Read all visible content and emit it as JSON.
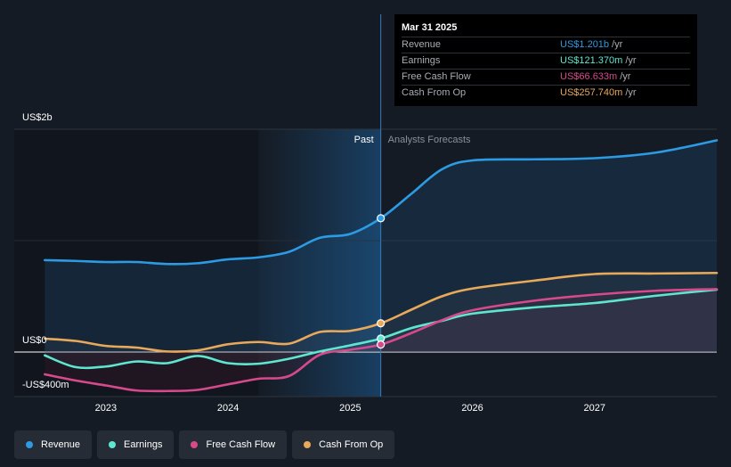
{
  "chart_data": {
    "type": "line",
    "y_axis_labels": {
      "top": "US$2b",
      "zero": "US$0",
      "bottom": "-US$400m"
    },
    "ylim": [
      -400,
      2000
    ],
    "xlim": [
      2022.25,
      2028.0
    ],
    "x_ticks": [
      "2023",
      "2024",
      "2025",
      "2026",
      "2027"
    ],
    "x_tick_values": [
      2023,
      2024,
      2025,
      2026,
      2027
    ],
    "past_label": "Past",
    "forecast_label": "Analysts Forecasts",
    "divider_x": 2025.25,
    "past_band_start": 2024.25,
    "series": [
      {
        "name": "Revenue",
        "color": "#2d9be3",
        "points": [
          [
            2022.5,
            825
          ],
          [
            2022.75,
            818
          ],
          [
            2023.0,
            808
          ],
          [
            2023.25,
            808
          ],
          [
            2023.5,
            790
          ],
          [
            2023.75,
            797
          ],
          [
            2024.0,
            832
          ],
          [
            2024.25,
            850
          ],
          [
            2024.5,
            900
          ],
          [
            2024.75,
            1025
          ],
          [
            2025.0,
            1060
          ],
          [
            2025.25,
            1201
          ],
          [
            2025.5,
            1420
          ],
          [
            2025.75,
            1640
          ],
          [
            2026.0,
            1720
          ],
          [
            2026.5,
            1730
          ],
          [
            2027.0,
            1740
          ],
          [
            2027.5,
            1790
          ],
          [
            2028.0,
            1900
          ]
        ]
      },
      {
        "name": "Earnings",
        "color": "#5ee6d0",
        "points": [
          [
            2022.5,
            -30
          ],
          [
            2022.75,
            -135
          ],
          [
            2023.0,
            -130
          ],
          [
            2023.25,
            -85
          ],
          [
            2023.5,
            -100
          ],
          [
            2023.75,
            -35
          ],
          [
            2024.0,
            -100
          ],
          [
            2024.25,
            -105
          ],
          [
            2024.5,
            -60
          ],
          [
            2024.75,
            5
          ],
          [
            2025.0,
            60
          ],
          [
            2025.25,
            121
          ],
          [
            2025.5,
            215
          ],
          [
            2025.75,
            280
          ],
          [
            2026.0,
            345
          ],
          [
            2026.5,
            400
          ],
          [
            2027.0,
            440
          ],
          [
            2027.5,
            505
          ],
          [
            2028.0,
            560
          ]
        ]
      },
      {
        "name": "Free Cash Flow",
        "color": "#d64a8c",
        "points": [
          [
            2022.5,
            -200
          ],
          [
            2022.75,
            -255
          ],
          [
            2023.0,
            -300
          ],
          [
            2023.25,
            -345
          ],
          [
            2023.5,
            -350
          ],
          [
            2023.75,
            -340
          ],
          [
            2024.0,
            -290
          ],
          [
            2024.25,
            -240
          ],
          [
            2024.5,
            -215
          ],
          [
            2024.75,
            -25
          ],
          [
            2025.0,
            20
          ],
          [
            2025.25,
            67
          ],
          [
            2025.5,
            170
          ],
          [
            2025.75,
            285
          ],
          [
            2026.0,
            375
          ],
          [
            2026.5,
            460
          ],
          [
            2027.0,
            515
          ],
          [
            2027.5,
            550
          ],
          [
            2028.0,
            565
          ]
        ]
      },
      {
        "name": "Cash From Op",
        "color": "#e8a95b",
        "points": [
          [
            2022.5,
            120
          ],
          [
            2022.75,
            100
          ],
          [
            2023.0,
            55
          ],
          [
            2023.25,
            40
          ],
          [
            2023.5,
            5
          ],
          [
            2023.75,
            15
          ],
          [
            2024.0,
            70
          ],
          [
            2024.25,
            90
          ],
          [
            2024.5,
            75
          ],
          [
            2024.75,
            180
          ],
          [
            2025.0,
            190
          ],
          [
            2025.25,
            258
          ],
          [
            2025.5,
            380
          ],
          [
            2025.75,
            500
          ],
          [
            2026.0,
            570
          ],
          [
            2026.5,
            640
          ],
          [
            2027.0,
            700
          ],
          [
            2027.5,
            705
          ],
          [
            2028.0,
            710
          ]
        ]
      }
    ]
  },
  "tooltip": {
    "date": "Mar 31 2025",
    "rows": [
      {
        "name": "Revenue",
        "value": "US$1.201b",
        "unit": "/yr",
        "color": "#2d9be3"
      },
      {
        "name": "Earnings",
        "value": "US$121.370m",
        "unit": "/yr",
        "color": "#5ee6d0"
      },
      {
        "name": "Free Cash Flow",
        "value": "US$66.633m",
        "unit": "/yr",
        "color": "#d64a8c"
      },
      {
        "name": "Cash From Op",
        "value": "US$257.740m",
        "unit": "/yr",
        "color": "#e8a95b"
      }
    ]
  },
  "legend": [
    {
      "label": "Revenue",
      "color": "#2d9be3"
    },
    {
      "label": "Earnings",
      "color": "#5ee6d0"
    },
    {
      "label": "Free Cash Flow",
      "color": "#d64a8c"
    },
    {
      "label": "Cash From Op",
      "color": "#e8a95b"
    }
  ]
}
